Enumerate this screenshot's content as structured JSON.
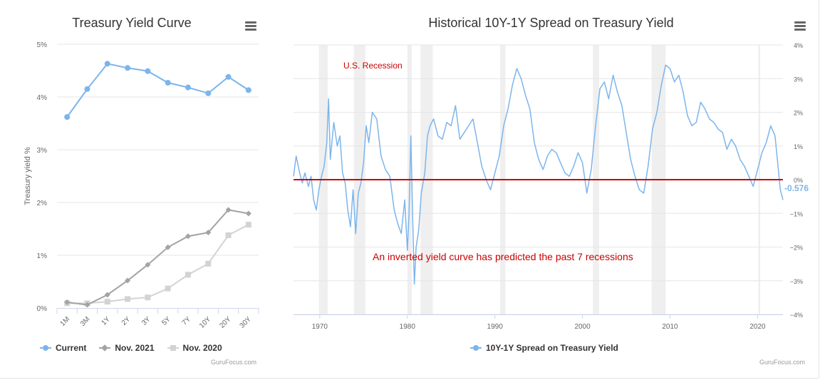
{
  "colors": {
    "current": "#7cb5ec",
    "nov2021": "#a3a3a3",
    "nov2020": "#d3d3d3",
    "spread": "#7cb5ec",
    "zero_line": "#cc0000",
    "annotation": "#cc0000",
    "recession_band": "#efefef"
  },
  "chart_data": [
    {
      "type": "line",
      "title": "Treasury Yield Curve",
      "ylabel": "Treasury yield %",
      "ylim": [
        0,
        5
      ],
      "y_ticks": [
        "0%",
        "1%",
        "2%",
        "3%",
        "4%",
        "5%"
      ],
      "categories": [
        "1M",
        "3M",
        "1Y",
        "2Y",
        "3Y",
        "5Y",
        "7Y",
        "10Y",
        "20Y",
        "30Y"
      ],
      "series": [
        {
          "name": "Current",
          "color": "#7cb5ec",
          "marker": "circle",
          "values": [
            3.62,
            4.15,
            4.63,
            4.55,
            4.49,
            4.27,
            4.18,
            4.07,
            4.38,
            4.13
          ]
        },
        {
          "name": "Nov. 2021",
          "color": "#a3a3a3",
          "marker": "diamond",
          "values": [
            0.11,
            0.06,
            0.25,
            0.52,
            0.82,
            1.15,
            1.36,
            1.43,
            1.86,
            1.79
          ]
        },
        {
          "name": "Nov. 2020",
          "color": "#d3d3d3",
          "marker": "square",
          "values": [
            0.09,
            0.09,
            0.12,
            0.17,
            0.2,
            0.37,
            0.63,
            0.84,
            1.38,
            1.58
          ]
        }
      ],
      "legend_placement": "bottom",
      "credits": "GuruFocus.com",
      "grid": true
    },
    {
      "type": "line",
      "title": "Historical 10Y-1Y Spread on Treasury Yield",
      "ylim": [
        -4,
        4
      ],
      "y_ticks": [
        "−4%",
        "−3%",
        "−2%",
        "−1%",
        "0%",
        "1%",
        "2%",
        "3%",
        "4%"
      ],
      "x_ticks": [
        "1970",
        "1980",
        "1990",
        "2000",
        "2010",
        "2020"
      ],
      "xlim": [
        1967.0,
        2022.9
      ],
      "series": [
        {
          "name": "10Y-1Y Spread on Treasury Yield",
          "color": "#7cb5ec",
          "x": [
            1967.0,
            1967.3,
            1967.7,
            1968.0,
            1968.3,
            1968.7,
            1969.0,
            1969.3,
            1969.6,
            1969.9,
            1970.2,
            1970.5,
            1970.8,
            1971.0,
            1971.2,
            1971.6,
            1972.0,
            1972.3,
            1972.6,
            1972.9,
            1973.2,
            1973.5,
            1973.8,
            1974.1,
            1974.4,
            1974.7,
            1975.0,
            1975.3,
            1975.6,
            1976.0,
            1976.5,
            1977.0,
            1977.5,
            1978.0,
            1978.5,
            1978.9,
            1979.3,
            1979.7,
            1980.0,
            1980.2,
            1980.4,
            1980.6,
            1980.8,
            1981.0,
            1981.3,
            1981.6,
            1982.0,
            1982.3,
            1982.6,
            1983.0,
            1983.5,
            1984.0,
            1984.5,
            1985.0,
            1985.5,
            1986.0,
            1986.5,
            1987.0,
            1987.5,
            1988.0,
            1988.5,
            1989.0,
            1989.5,
            1990.0,
            1990.5,
            1991.0,
            1991.5,
            1992.0,
            1992.5,
            1993.0,
            1993.5,
            1994.0,
            1994.5,
            1995.0,
            1995.5,
            1996.0,
            1996.5,
            1997.0,
            1997.5,
            1998.0,
            1998.5,
            1999.0,
            1999.5,
            2000.0,
            2000.5,
            2001.0,
            2001.5,
            2002.0,
            2002.5,
            2003.0,
            2003.5,
            2004.0,
            2004.5,
            2005.0,
            2005.5,
            2006.0,
            2006.5,
            2007.0,
            2007.5,
            2008.0,
            2008.5,
            2009.0,
            2009.5,
            2010.0,
            2010.5,
            2011.0,
            2011.5,
            2012.0,
            2012.5,
            2013.0,
            2013.5,
            2014.0,
            2014.5,
            2015.0,
            2015.5,
            2016.0,
            2016.5,
            2017.0,
            2017.5,
            2018.0,
            2018.5,
            2019.0,
            2019.5,
            2020.0,
            2020.5,
            2021.0,
            2021.5,
            2022.0,
            2022.3,
            2022.6,
            2022.9
          ],
          "values": [
            0.1,
            0.7,
            0.2,
            -0.1,
            0.2,
            -0.2,
            0.1,
            -0.6,
            -0.9,
            -0.3,
            0.1,
            0.4,
            1.1,
            2.4,
            0.6,
            1.7,
            1.0,
            1.3,
            0.2,
            -0.1,
            -0.9,
            -1.4,
            -0.3,
            -1.6,
            -0.4,
            -0.1,
            0.5,
            1.6,
            1.1,
            2.0,
            1.8,
            0.7,
            0.3,
            0.1,
            -0.9,
            -1.3,
            -1.6,
            -0.6,
            -2.1,
            -1.0,
            1.3,
            -1.0,
            -3.1,
            -2.0,
            -1.5,
            -0.4,
            0.2,
            1.3,
            1.6,
            1.8,
            1.3,
            1.2,
            1.7,
            1.6,
            2.2,
            1.2,
            1.4,
            1.6,
            1.8,
            1.1,
            0.4,
            0.0,
            -0.3,
            0.2,
            0.7,
            1.6,
            2.1,
            2.8,
            3.3,
            3.0,
            2.5,
            2.1,
            1.1,
            0.6,
            0.3,
            0.7,
            0.9,
            0.8,
            0.5,
            0.2,
            0.1,
            0.4,
            0.8,
            0.5,
            -0.4,
            0.3,
            1.6,
            2.7,
            2.9,
            2.4,
            3.1,
            2.6,
            2.2,
            1.4,
            0.6,
            0.1,
            -0.3,
            -0.4,
            0.4,
            1.5,
            2.0,
            2.8,
            3.4,
            3.3,
            2.9,
            3.1,
            2.6,
            1.9,
            1.6,
            1.7,
            2.3,
            2.1,
            1.8,
            1.7,
            1.5,
            1.4,
            0.9,
            1.2,
            1.0,
            0.6,
            0.4,
            0.1,
            -0.2,
            0.3,
            0.8,
            1.1,
            1.6,
            1.3,
            0.5,
            -0.3,
            -0.6
          ]
        }
      ],
      "recessions": [
        [
          1969.9,
          1970.9
        ],
        [
          1973.9,
          1975.2
        ],
        [
          1980.0,
          1980.5
        ],
        [
          1981.5,
          1982.9
        ],
        [
          1990.6,
          1991.2
        ],
        [
          2001.2,
          2001.9
        ],
        [
          2007.9,
          2009.5
        ],
        [
          2020.1,
          2020.3
        ]
      ],
      "annotations": {
        "recession_label": "U.S. Recession",
        "note": "An inverted yield curve has predicted the past 7 recessions"
      },
      "last_value_label": "-0.576",
      "legend_placement": "bottom",
      "credits": "GuruFocus.com",
      "grid": true
    }
  ]
}
